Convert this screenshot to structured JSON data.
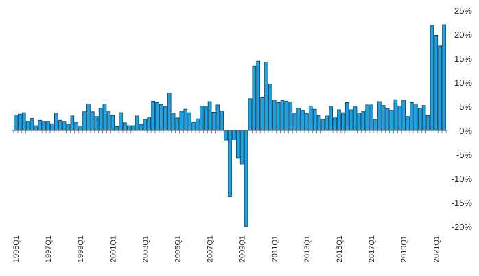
{
  "chart_data": {
    "type": "bar",
    "title": "",
    "xlabel": "",
    "ylabel": "",
    "ylim": [
      -20,
      25
    ],
    "grid": false,
    "legend": "none",
    "colors": {
      "bar_fill": "#1ca3e3",
      "bar_stroke": "#0b3a5a",
      "axis": "#6e6e6e"
    },
    "y_tick_values": [
      25,
      20,
      15,
      10,
      5,
      0,
      -5,
      -10,
      -15,
      -20
    ],
    "y_tick_labels": [
      "25%",
      "20%",
      "15%",
      "10%",
      "5%",
      "0%",
      "-5%",
      "-10%",
      "-15%",
      "-20%"
    ],
    "x_tick_labels": [
      "1995Q1",
      "1997Q1",
      "1999Q1",
      "2001Q1",
      "2003Q1",
      "2005Q1",
      "2007Q1",
      "2009Q1",
      "2011Q1",
      "2013Q1",
      "2015Q1",
      "2017Q1",
      "2019Q1",
      "2021Q1"
    ],
    "start_label": "1995Q1",
    "values": [
      3.2,
      3.4,
      3.7,
      1.9,
      2.5,
      1.0,
      2.1,
      1.9,
      1.9,
      1.4,
      3.6,
      2.1,
      1.9,
      1.2,
      3.0,
      1.7,
      0.9,
      3.9,
      5.5,
      3.9,
      2.9,
      4.6,
      5.5,
      3.9,
      3.1,
      0.8,
      3.7,
      1.6,
      1.0,
      1.0,
      3.0,
      1.3,
      2.3,
      2.7,
      6.1,
      5.8,
      5.4,
      5.0,
      7.8,
      3.6,
      2.6,
      4.0,
      4.4,
      3.7,
      1.7,
      2.4,
      5.1,
      4.9,
      6.0,
      3.8,
      5.3,
      4.0,
      -2.0,
      -13.8,
      -1.9,
      -5.7,
      -7.0,
      -20.0,
      6.6,
      13.4,
      14.4,
      6.8,
      14.2,
      9.6,
      6.3,
      5.8,
      6.2,
      6.1,
      5.9,
      3.6,
      4.6,
      4.2,
      3.5,
      5.1,
      4.4,
      3.1,
      2.3,
      3.0,
      4.9,
      2.8,
      4.3,
      3.7,
      5.8,
      4.3,
      4.9,
      3.6,
      4.0,
      5.3,
      5.3,
      2.3,
      6.0,
      5.2,
      4.5,
      4.2,
      6.4,
      5.1,
      6.2,
      2.9,
      5.8,
      5.5,
      4.6,
      5.2,
      3.1,
      21.9,
      19.8,
      17.6,
      22.0
    ]
  }
}
